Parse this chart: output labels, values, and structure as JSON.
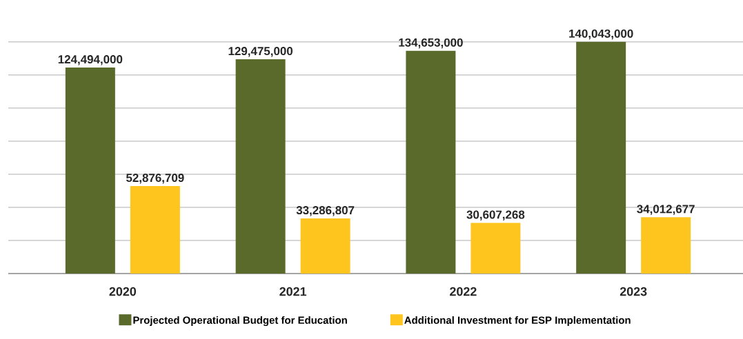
{
  "chart_data": {
    "type": "bar",
    "categories": [
      "2020",
      "2021",
      "2022",
      "2023"
    ],
    "series": [
      {
        "name": "Projected Operational Budget for Education",
        "color": "#5a6a2b",
        "values": [
          124494000,
          129475000,
          134653000,
          140043000
        ],
        "value_labels": [
          "124,494,000",
          "129,475,000",
          "134,653,000",
          "140,043,000"
        ]
      },
      {
        "name": "Additional Investment for ESP Implementation",
        "color": "#fdc51e",
        "values": [
          52876709,
          33286807,
          30607268,
          34012677
        ],
        "value_labels": [
          "52,876,709",
          "33,286,807",
          "30,607,268",
          "34,012,677"
        ]
      }
    ],
    "grid": "y",
    "legend": "bottom",
    "tick_labels": "x"
  }
}
